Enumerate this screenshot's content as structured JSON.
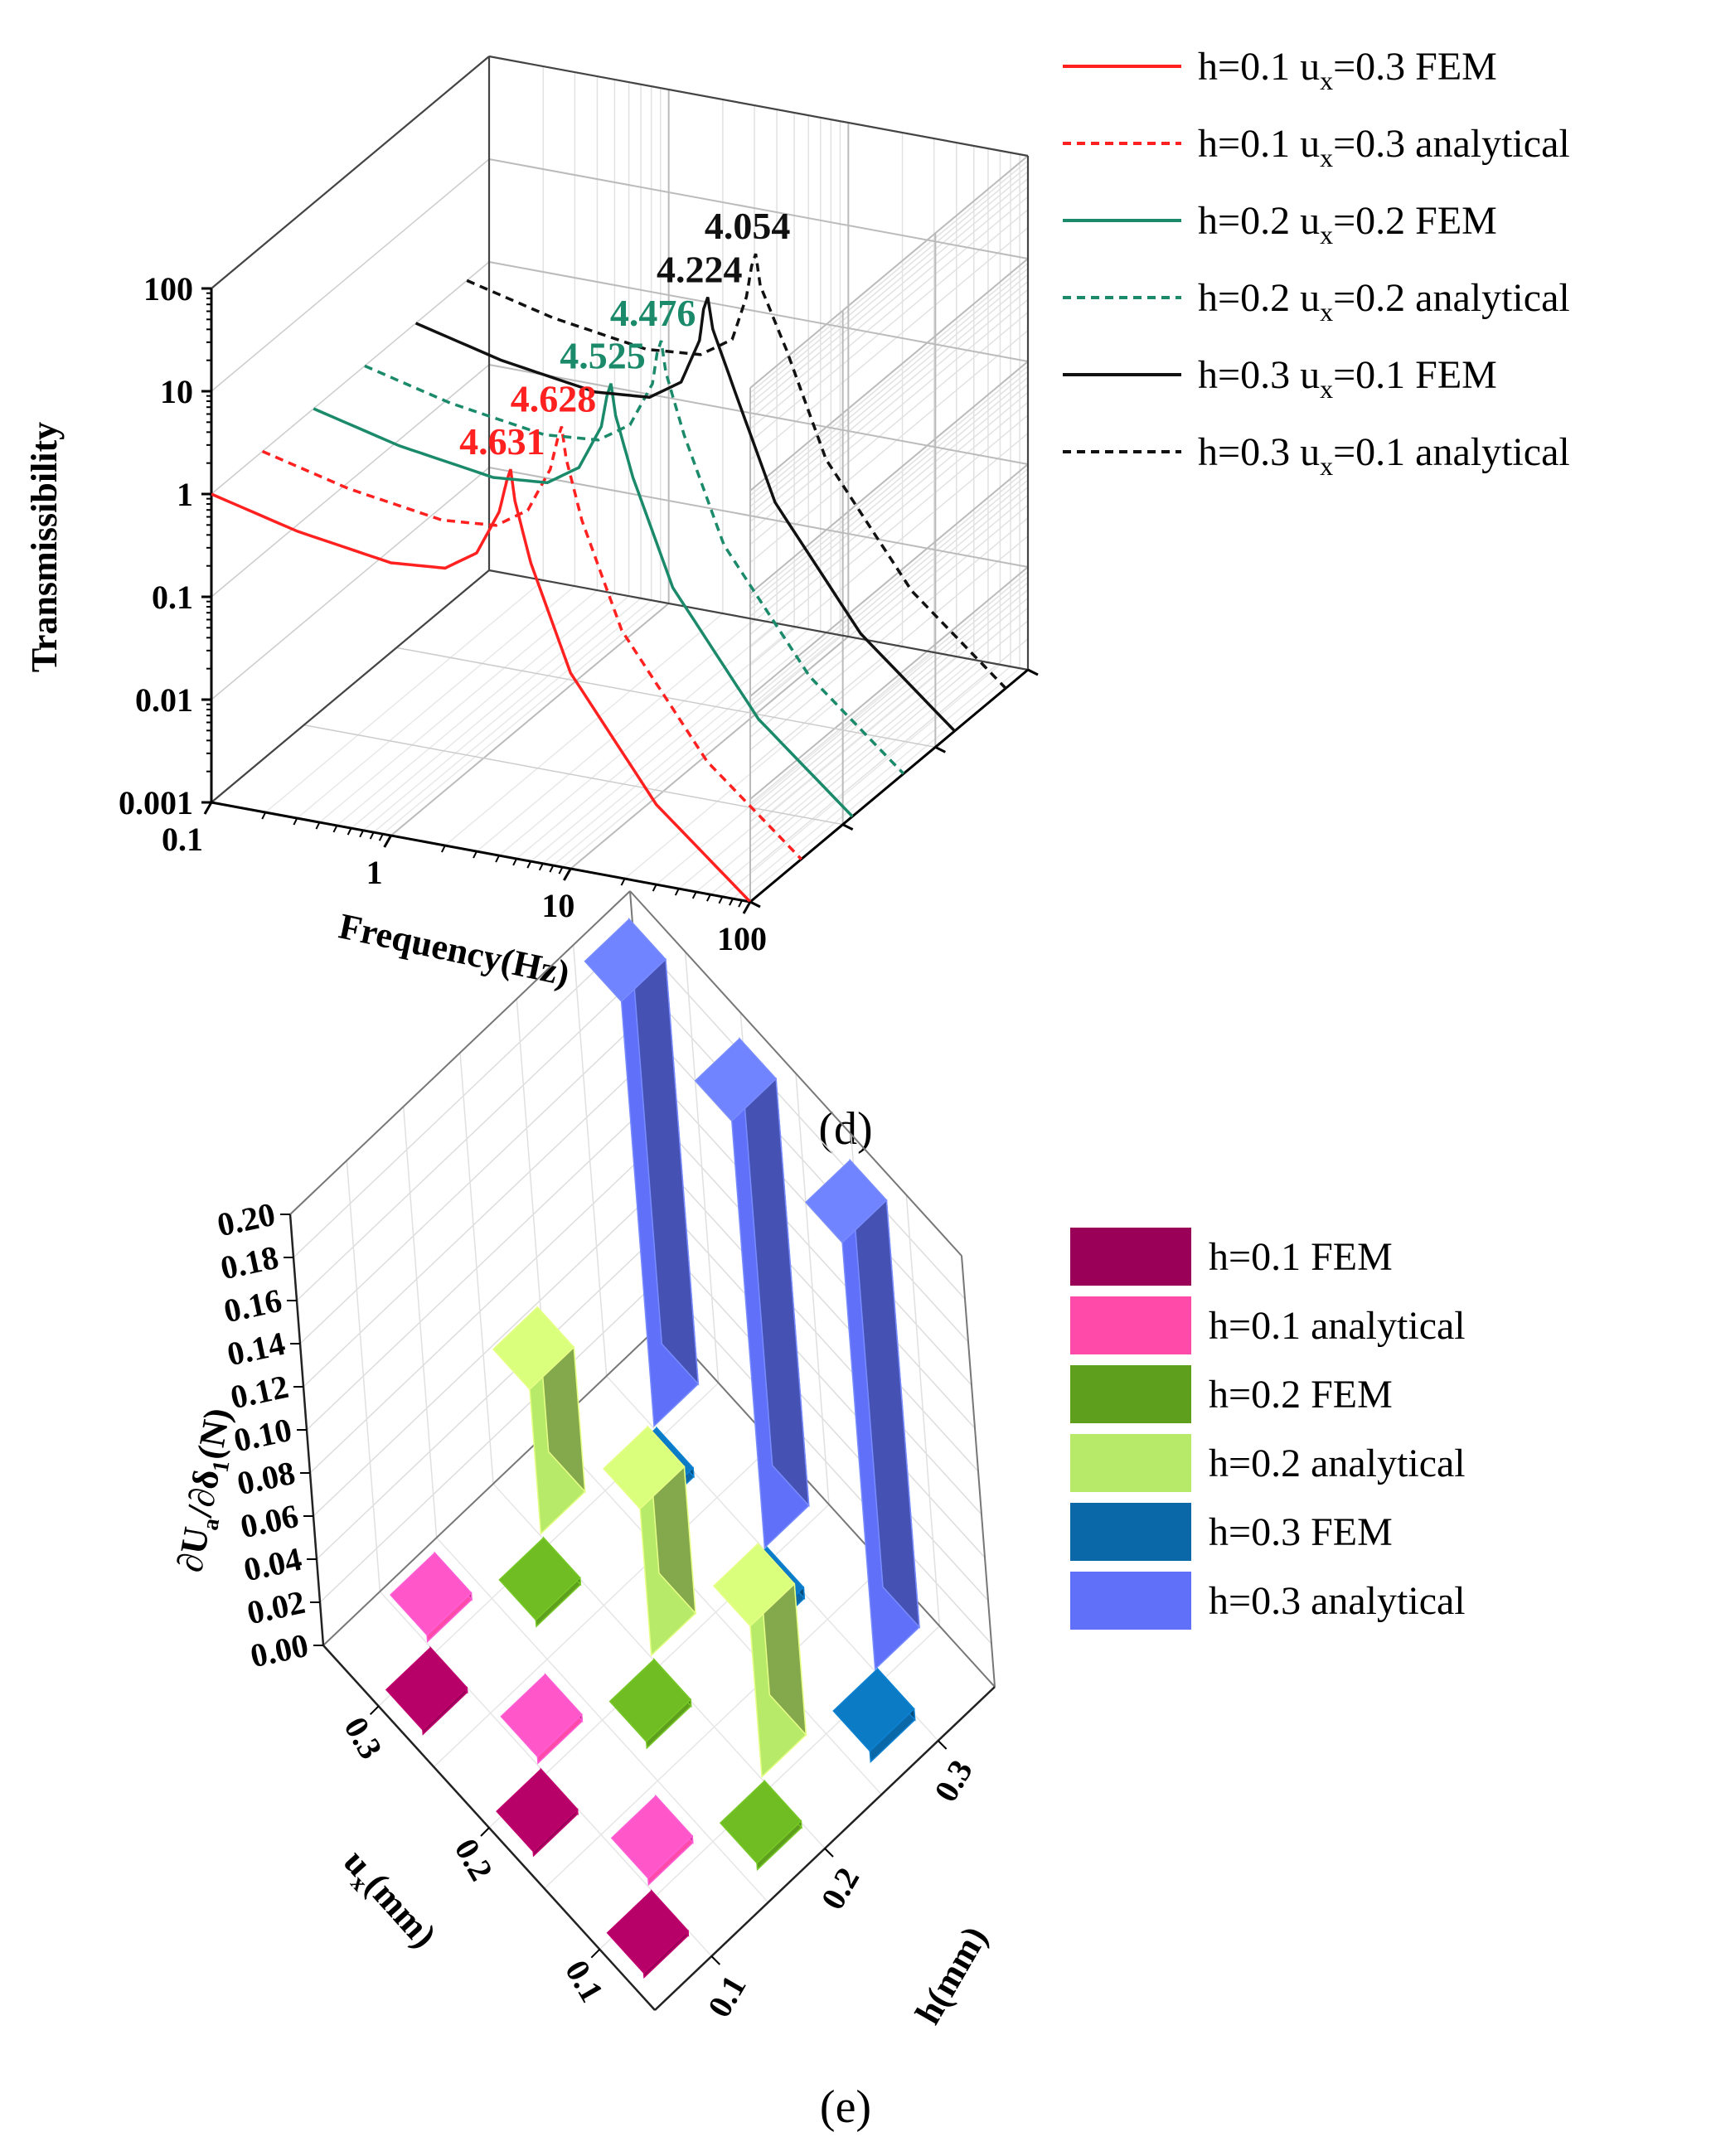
{
  "chart_data": [
    {
      "panel": "(d)",
      "type": "line",
      "projection": "3d",
      "xlabel": "Frequency(Hz)",
      "ylabel": "Transmissibility",
      "x_ticks": [
        "0.1",
        "1",
        "10",
        "100"
      ],
      "y_ticks": [
        "100",
        "10",
        "1",
        "0.1",
        "0.01",
        "0.001"
      ],
      "xlim": [
        0.1,
        100
      ],
      "ylim": [
        0.001,
        100
      ],
      "scale": "log-log",
      "series": [
        {
          "name": "h=0.1 ux=0.3 FEM",
          "h": "0.1",
          "ux": "0.3",
          "method": "FEM",
          "color": "#ff2020",
          "style": "solid",
          "peak_label": "4.631",
          "x": [
            0.1,
            0.3,
            1,
            2,
            3,
            4,
            4.4,
            4.631,
            4.9,
            6,
            10,
            30,
            100
          ],
          "y": [
            1,
            0.62,
            0.45,
            0.5,
            0.8,
            2.2,
            4.5,
            6.0,
            3.0,
            0.8,
            0.08,
            0.006,
            0.001
          ]
        },
        {
          "name": "h=0.1 ux=0.3 analytical",
          "h": "0.1",
          "ux": "0.3",
          "method": "analytical",
          "color": "#ff2020",
          "style": "dashed",
          "peak_label": "4.628",
          "x": [
            0.1,
            0.3,
            1,
            2,
            3,
            4,
            4.4,
            4.628,
            4.9,
            6,
            10,
            30,
            100
          ],
          "y": [
            1,
            0.62,
            0.45,
            0.5,
            0.8,
            2.2,
            4.5,
            6.0,
            3.0,
            0.8,
            0.08,
            0.006,
            0.001
          ]
        },
        {
          "name": "h=0.2 ux=0.2 FEM",
          "h": "0.2",
          "ux": "0.2",
          "method": "FEM",
          "color": "#1a8a6a",
          "style": "solid",
          "peak_label": "4.525",
          "x": [
            0.1,
            0.3,
            1,
            2,
            3,
            4,
            4.3,
            4.525,
            4.8,
            6,
            10,
            30,
            100
          ],
          "y": [
            1,
            0.62,
            0.45,
            0.5,
            0.8,
            2.2,
            4.5,
            6.0,
            3.0,
            0.8,
            0.08,
            0.006,
            0.001
          ]
        },
        {
          "name": "h=0.2 ux=0.2 analytical",
          "h": "0.2",
          "ux": "0.2",
          "method": "analytical",
          "color": "#1a8a6a",
          "style": "dashed",
          "peak_label": "4.476",
          "x": [
            0.1,
            0.3,
            1,
            2,
            3,
            4,
            4.25,
            4.476,
            4.75,
            6,
            10,
            30,
            100
          ],
          "y": [
            1,
            0.62,
            0.45,
            0.5,
            0.8,
            2.2,
            4.5,
            6.0,
            3.0,
            0.8,
            0.08,
            0.006,
            0.001
          ]
        },
        {
          "name": "h=0.3 ux=0.1 FEM",
          "h": "0.3",
          "ux": "0.1",
          "method": "FEM",
          "color": "#111111",
          "style": "solid",
          "peak_label": "4.224",
          "x": [
            0.1,
            0.3,
            1,
            2,
            3,
            3.8,
            4.0,
            4.224,
            4.5,
            6,
            10,
            30,
            100
          ],
          "y": [
            1,
            0.62,
            0.45,
            0.5,
            0.8,
            2.2,
            4.5,
            6.0,
            3.0,
            0.8,
            0.08,
            0.006,
            0.001
          ]
        },
        {
          "name": "h=0.3 ux=0.1 analytical",
          "h": "0.3",
          "ux": "0.1",
          "method": "analytical",
          "color": "#111111",
          "style": "dashed",
          "peak_label": "4.054",
          "x": [
            0.1,
            0.3,
            1,
            2,
            3,
            3.6,
            3.85,
            4.054,
            4.3,
            6,
            10,
            30,
            100
          ],
          "y": [
            1,
            0.62,
            0.45,
            0.5,
            0.8,
            2.2,
            4.5,
            6.0,
            3.0,
            0.8,
            0.08,
            0.006,
            0.001
          ]
        }
      ]
    },
    {
      "panel": "(e)",
      "type": "bar",
      "projection": "3d",
      "ylabel": "∂U",
      "ylabel_sub1": "a",
      "ylabel_mid": "/∂δ",
      "ylabel_sub2": "1",
      "ylabel_unit": "(N)",
      "ux_label": "u",
      "ux_label_sub": "x",
      "ux_label_unit": "(mm)",
      "h_label": "h(mm)",
      "z_ticks": [
        "0.00",
        "0.02",
        "0.04",
        "0.06",
        "0.08",
        "0.10",
        "0.12",
        "0.14",
        "0.16",
        "0.18",
        "0.20"
      ],
      "zlim": [
        0,
        0.2
      ],
      "ux_ticks": [
        "0.3",
        "0.2",
        "0.1"
      ],
      "h_ticks": [
        "0.1",
        "0.2",
        "0.3"
      ],
      "series": [
        {
          "name": "h=0.1 FEM",
          "color": "#9b0058",
          "h": "0.1",
          "values": {
            "0.3": 0.002,
            "0.2": 0.002,
            "0.1": 0.002
          }
        },
        {
          "name": "h=0.1 analytical",
          "color": "#ff4aaa",
          "h": "0.1",
          "values": {
            "0.3": 0.003,
            "0.2": 0.003,
            "0.1": 0.003
          }
        },
        {
          "name": "h=0.2 FEM",
          "color": "#5ea01e",
          "h": "0.2",
          "values": {
            "0.3": 0.003,
            "0.2": 0.003,
            "0.1": 0.003
          }
        },
        {
          "name": "h=0.2 analytical",
          "color": "#b8ea6a",
          "h": "0.2",
          "values": {
            "0.3": 0.067,
            "0.2": 0.068,
            "0.1": 0.07
          }
        },
        {
          "name": "h=0.3 FEM",
          "color": "#0a68a8",
          "h": "0.3",
          "values": {
            "0.3": 0.004,
            "0.2": 0.005,
            "0.1": 0.005
          }
        },
        {
          "name": "h=0.3 analytical",
          "color": "#6070f8",
          "h": "0.3",
          "values": {
            "0.3": 0.197,
            "0.2": 0.198,
            "0.1": 0.198
          }
        }
      ]
    }
  ],
  "panel_d_label": "(d)",
  "panel_e_label": "(e)",
  "legend_d": [
    {
      "pre": "h=0.1 u",
      "sub": "x",
      "post": "=0.3 FEM",
      "color": "#ff2020",
      "style": "solid"
    },
    {
      "pre": "h=0.1 u",
      "sub": "x",
      "post": "=0.3 analytical",
      "color": "#ff2020",
      "style": "dashed"
    },
    {
      "pre": "h=0.2 u",
      "sub": "x",
      "post": "=0.2 FEM",
      "color": "#1a8a6a",
      "style": "solid"
    },
    {
      "pre": "h=0.2 u",
      "sub": "x",
      "post": "=0.2 analytical",
      "color": "#1a8a6a",
      "style": "dashed"
    },
    {
      "pre": "h=0.3 u",
      "sub": "x",
      "post": "=0.1 FEM",
      "color": "#111111",
      "style": "solid"
    },
    {
      "pre": "h=0.3 u",
      "sub": "x",
      "post": "=0.1 analytical",
      "color": "#111111",
      "style": "dashed"
    }
  ],
  "legend_e": [
    {
      "label": "h=0.1 FEM",
      "color": "#9b0058"
    },
    {
      "label": "h=0.1 analytical",
      "color": "#ff4aaa"
    },
    {
      "label": "h=0.2 FEM",
      "color": "#5ea01e"
    },
    {
      "label": "h=0.2 analytical",
      "color": "#b8ea6a"
    },
    {
      "label": "h=0.3 FEM",
      "color": "#0a68a8"
    },
    {
      "label": "h=0.3 analytical",
      "color": "#6070f8"
    }
  ]
}
